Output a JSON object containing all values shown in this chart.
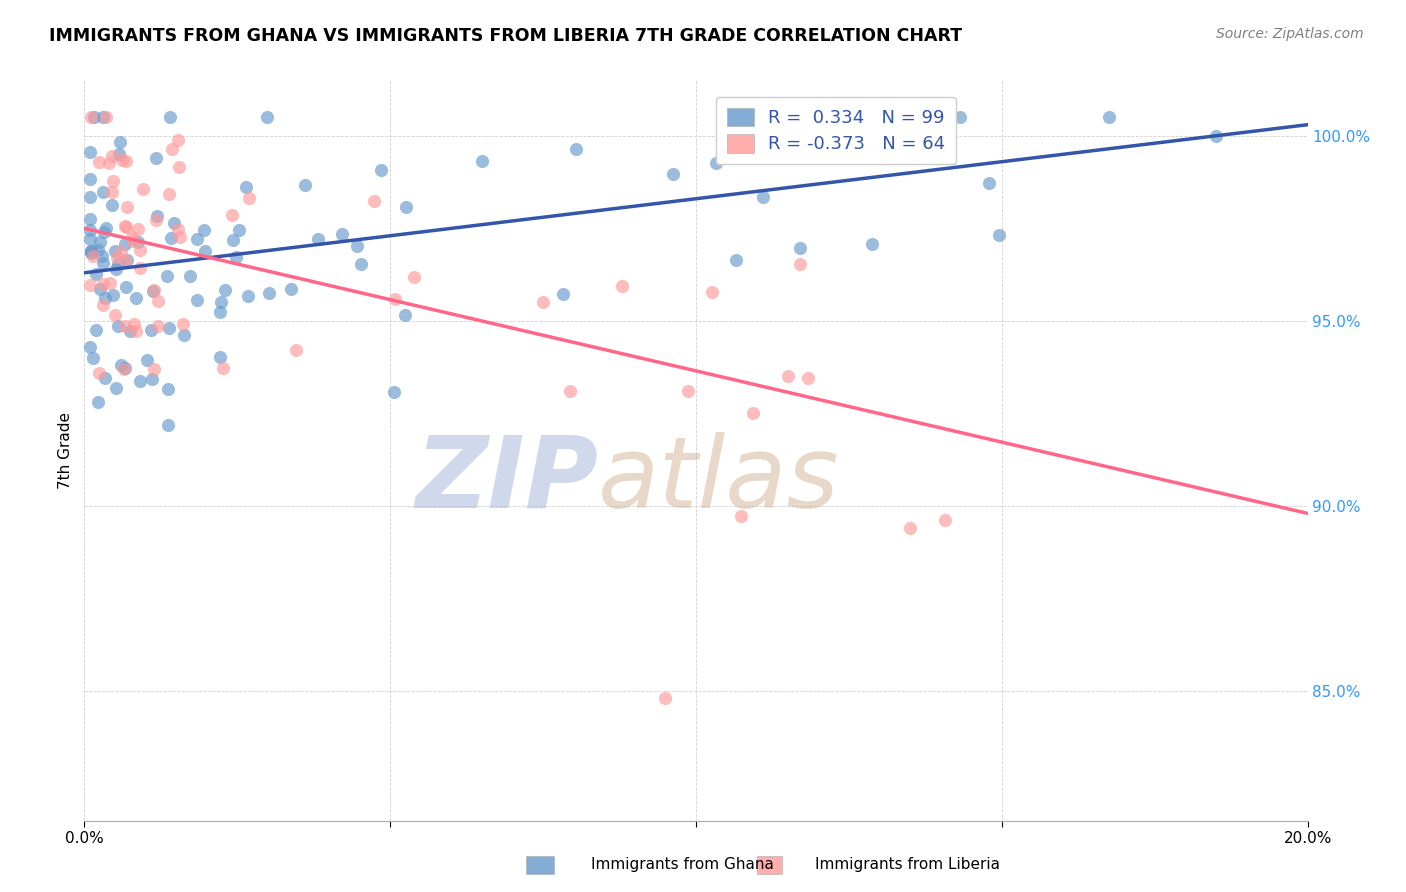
{
  "title": "IMMIGRANTS FROM GHANA VS IMMIGRANTS FROM LIBERIA 7TH GRADE CORRELATION CHART",
  "source": "Source: ZipAtlas.com",
  "ylabel": "7th Grade",
  "yticks": [
    "85.0%",
    "90.0%",
    "95.0%",
    "100.0%"
  ],
  "ytick_vals": [
    0.85,
    0.9,
    0.95,
    1.0
  ],
  "xmin": 0.0,
  "xmax": 0.2,
  "ymin": 0.815,
  "ymax": 1.015,
  "r_ghana": 0.334,
  "n_ghana": 99,
  "r_liberia": -0.373,
  "n_liberia": 64,
  "ghana_color": "#6699CC",
  "liberia_color": "#FF9999",
  "ghana_line_color": "#3355AA",
  "liberia_line_color": "#FF6688",
  "watermark_zip": "ZIP",
  "watermark_atlas": "atlas",
  "watermark_color_zip": "#AABBDD",
  "watermark_color_atlas": "#CCAA88",
  "ghana_line_x0": 0.0,
  "ghana_line_x1": 0.2,
  "ghana_line_y0": 0.963,
  "ghana_line_y1": 1.003,
  "liberia_line_x0": 0.0,
  "liberia_line_x1": 0.2,
  "liberia_line_y0": 0.975,
  "liberia_line_y1": 0.898
}
